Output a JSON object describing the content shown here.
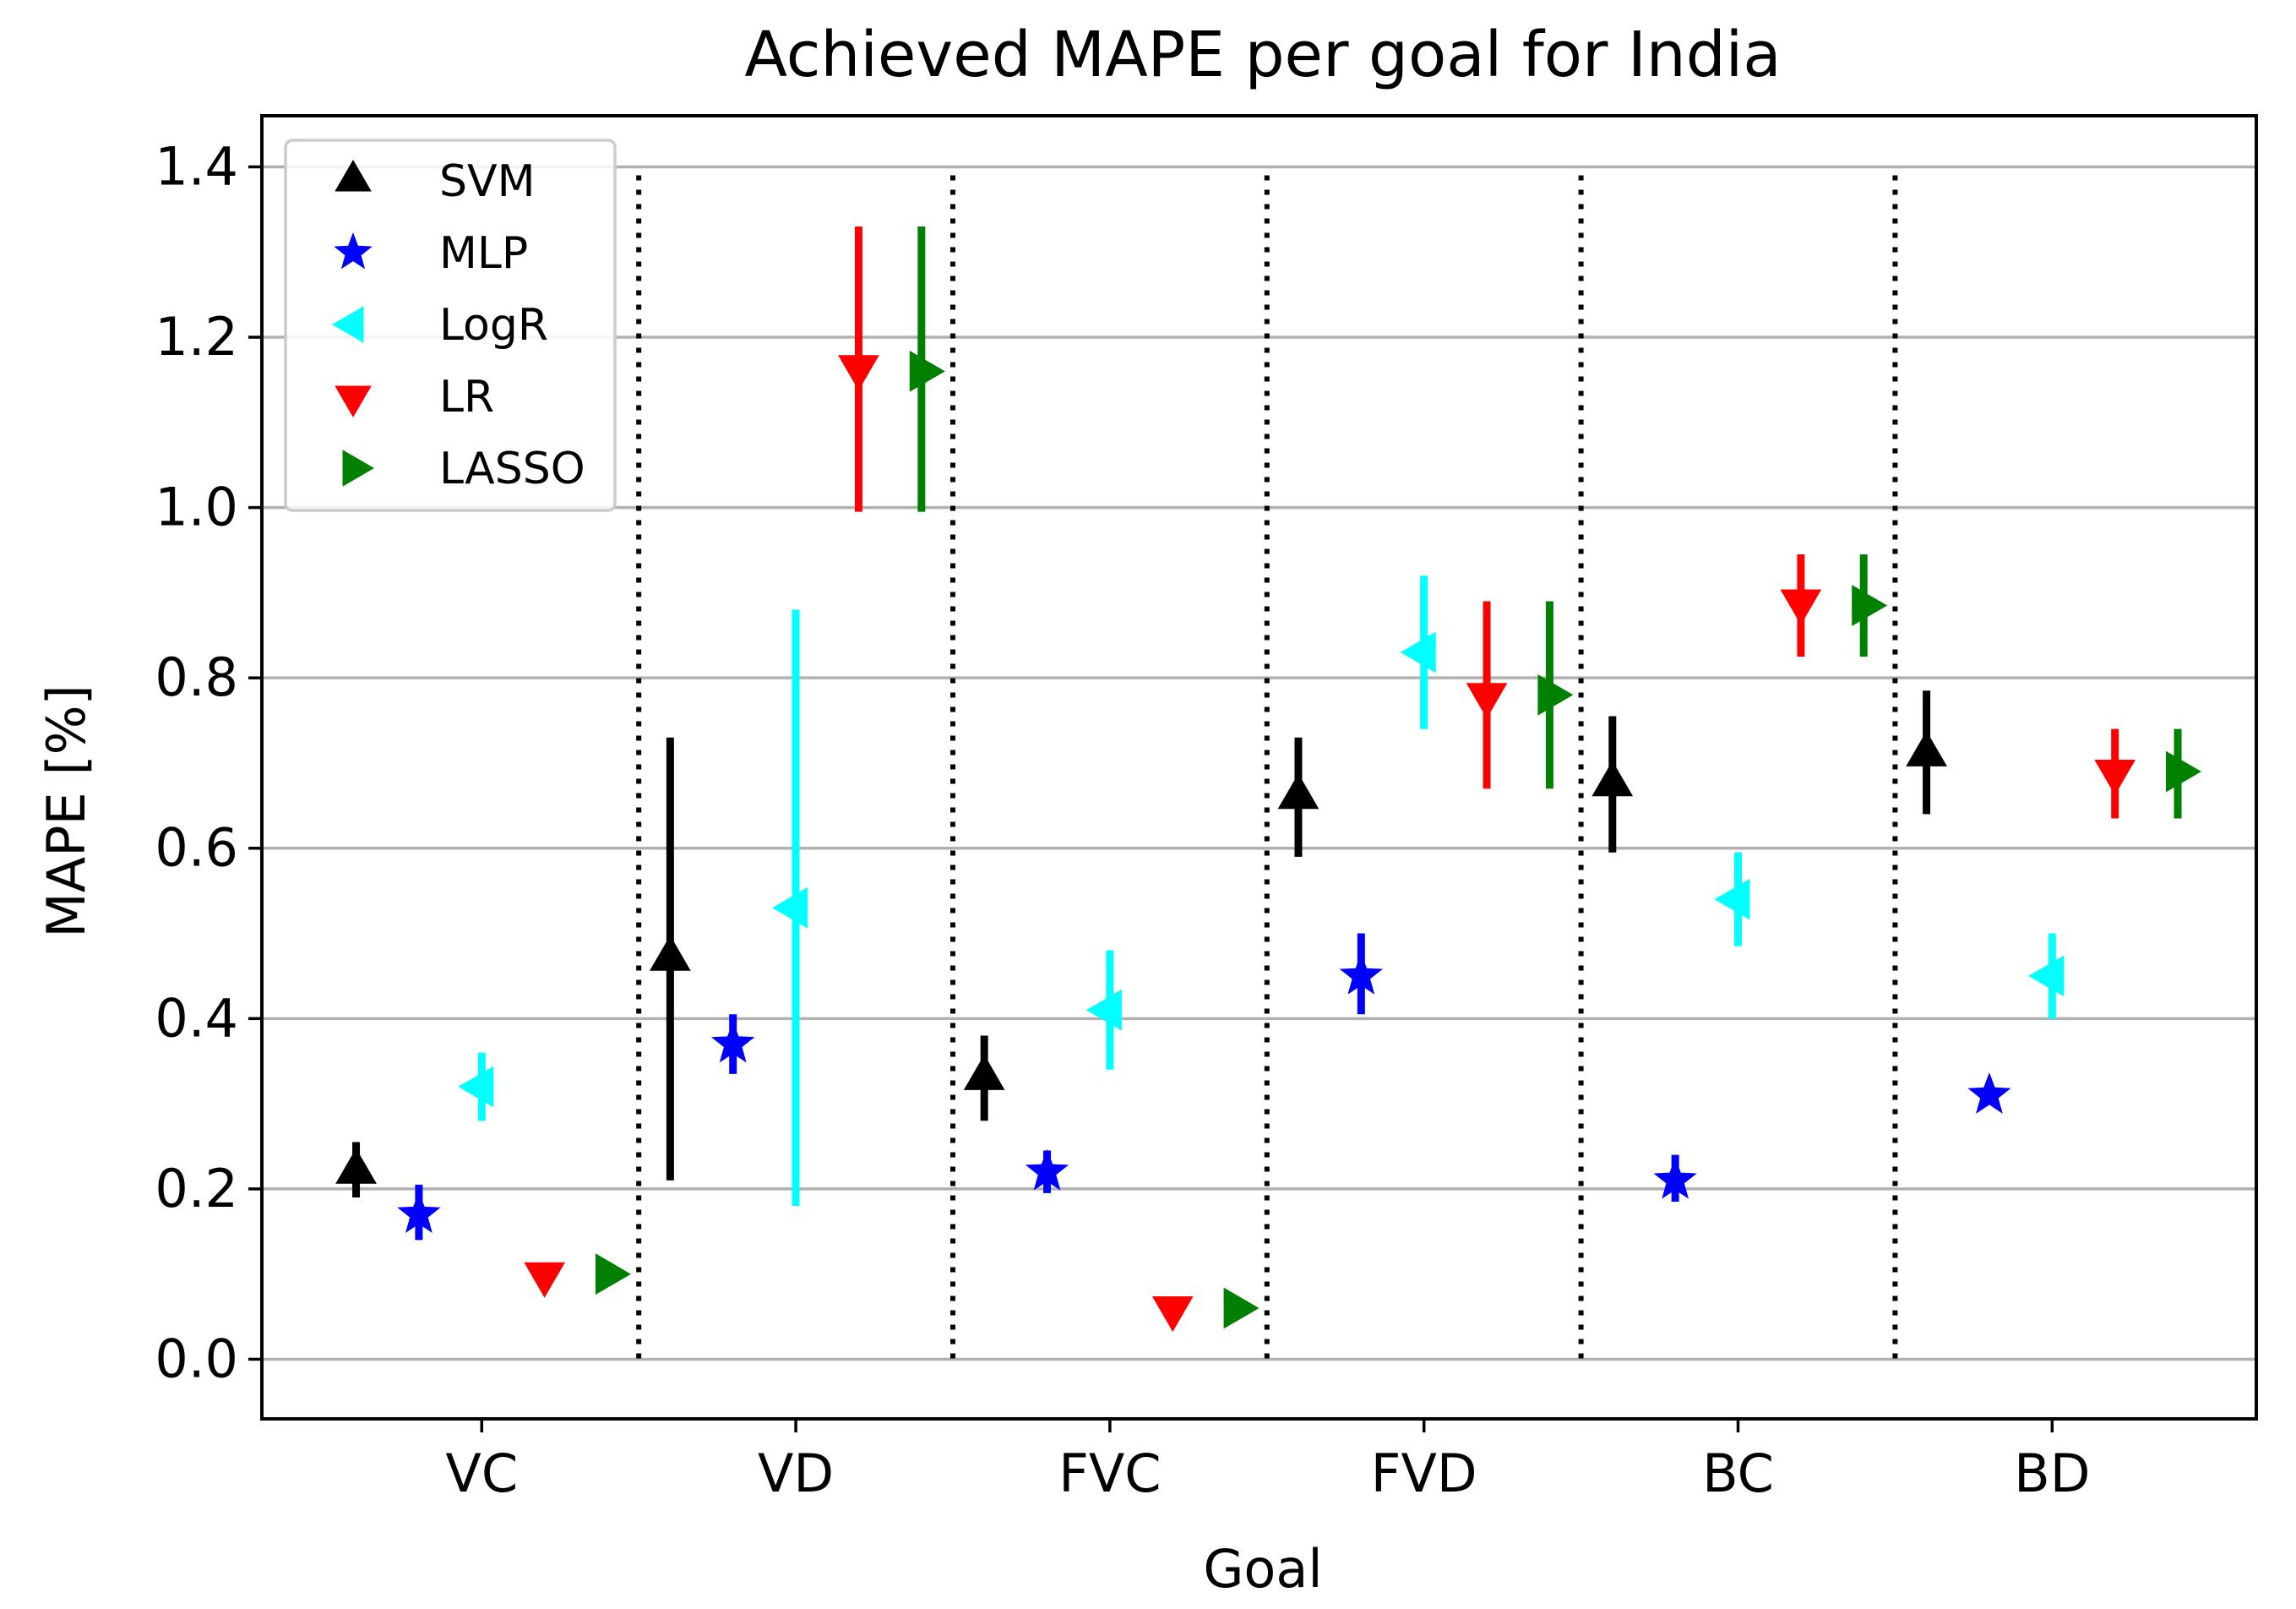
{
  "chart_data": {
    "type": "scatter",
    "title": "Achieved MAPE per goal for India",
    "xlabel": "Goal",
    "ylabel": "MAPE [%]",
    "ylim": [
      -0.07,
      1.46
    ],
    "yticks": [
      0.0,
      0.2,
      0.4,
      0.6,
      0.8,
      1.0,
      1.2,
      1.4
    ],
    "ytick_labels": [
      "0.0",
      "0.2",
      "0.4",
      "0.6",
      "0.8",
      "1.0",
      "1.2",
      "1.4"
    ],
    "grid": "horizontal",
    "legend_position": "top-left",
    "categories": [
      "VC",
      "VD",
      "FVC",
      "FVD",
      "BC",
      "BD"
    ],
    "series": [
      {
        "name": "SVM",
        "color": "#000000",
        "marker": "triangle-up",
        "values": [
          0.22,
          0.47,
          0.33,
          0.66,
          0.675,
          0.71
        ],
        "err_low": [
          0.19,
          0.21,
          0.28,
          0.59,
          0.595,
          0.64
        ],
        "err_high": [
          0.255,
          0.73,
          0.38,
          0.73,
          0.755,
          0.785
        ]
      },
      {
        "name": "MLP",
        "color": "#0000ff",
        "marker": "star",
        "values": [
          0.17,
          0.37,
          0.22,
          0.45,
          0.21,
          0.31
        ],
        "err_low": [
          0.14,
          0.335,
          0.195,
          0.405,
          0.185,
          0.3
        ],
        "err_high": [
          0.205,
          0.405,
          0.245,
          0.5,
          0.24,
          0.325
        ]
      },
      {
        "name": "LogR",
        "color": "#00ffff",
        "marker": "triangle-left",
        "values": [
          0.32,
          0.53,
          0.41,
          0.83,
          0.54,
          0.45
        ],
        "err_low": [
          0.28,
          0.18,
          0.34,
          0.74,
          0.485,
          0.4
        ],
        "err_high": [
          0.36,
          0.88,
          0.48,
          0.92,
          0.595,
          0.5
        ]
      },
      {
        "name": "LR",
        "color": "#ff0000",
        "marker": "triangle-down",
        "values": [
          0.1,
          1.165,
          0.06,
          0.78,
          0.89,
          0.69
        ],
        "err_low": [
          0.1,
          0.995,
          0.06,
          0.67,
          0.825,
          0.635
        ],
        "err_high": [
          0.1,
          1.33,
          0.06,
          0.89,
          0.945,
          0.74
        ]
      },
      {
        "name": "LASSO",
        "color": "#008000",
        "marker": "triangle-right",
        "values": [
          0.1,
          1.16,
          0.06,
          0.78,
          0.885,
          0.69
        ],
        "err_low": [
          0.1,
          0.995,
          0.06,
          0.67,
          0.825,
          0.635
        ],
        "err_high": [
          0.1,
          1.33,
          0.06,
          0.89,
          0.945,
          0.74
        ]
      }
    ]
  }
}
